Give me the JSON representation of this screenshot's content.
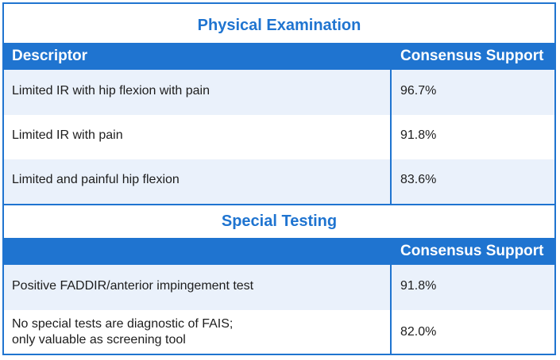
{
  "physical": {
    "title": "Physical Examination",
    "header": {
      "descriptor": "Descriptor",
      "support": "Consensus Support"
    },
    "rows": [
      {
        "descriptor": "Limited IR with hip flexion with pain",
        "support": "96.7%"
      },
      {
        "descriptor": "Limited IR with pain",
        "support": "91.8%"
      },
      {
        "descriptor": "Limited and painful hip flexion",
        "support": "83.6%"
      }
    ]
  },
  "special": {
    "title": "Special Testing",
    "header": {
      "support": "Consensus Support"
    },
    "rows": [
      {
        "descriptor": "Positive FADDIR/anterior impingement test",
        "support": "91.8%"
      },
      {
        "descriptor_line1": "No special tests are diagnostic of FAIS;",
        "descriptor_line2": "only valuable as screening tool",
        "support": "82.0%"
      }
    ]
  },
  "colors": {
    "accent": "#1f74d0",
    "shade": "#eaf1fb"
  }
}
